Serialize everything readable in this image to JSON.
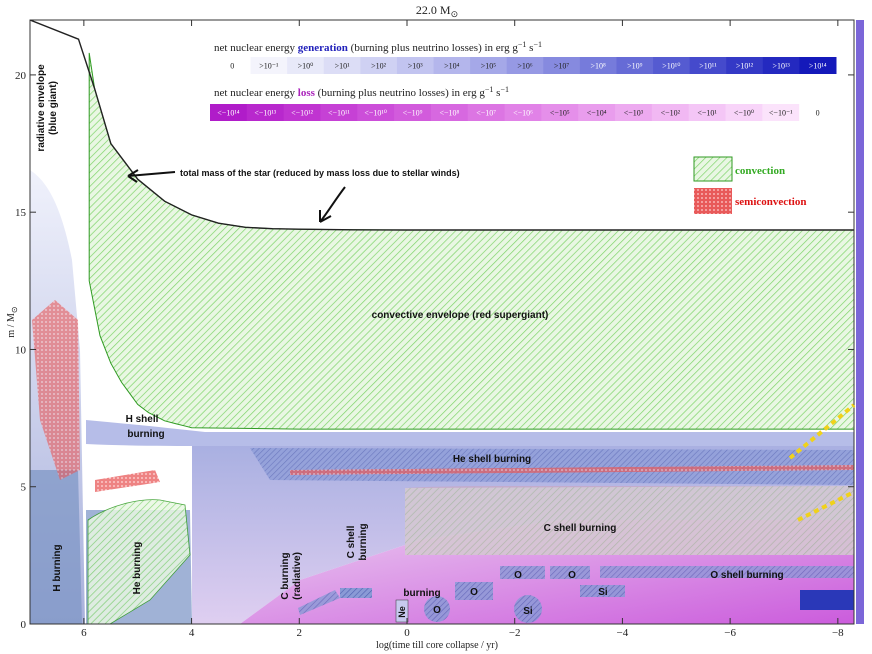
{
  "chart_data": {
    "type": "area",
    "title": "22.0 M",
    "title_symbol": "⊙",
    "xlabel": "log(time till core collapse / yr)",
    "ylabel": "m / M",
    "ylabel_symbol": "⊙",
    "xlim": [
      7,
      -8.3
    ],
    "ylim": [
      0,
      22
    ],
    "x_ticks": [
      {
        "value": 6,
        "label": "6"
      },
      {
        "value": 4,
        "label": "4"
      },
      {
        "value": 2,
        "label": "2"
      },
      {
        "value": 0,
        "label": "0"
      },
      {
        "value": -2,
        "label": "−2"
      },
      {
        "value": -4,
        "label": "−4"
      },
      {
        "value": -6,
        "label": "−6"
      },
      {
        "value": -8,
        "label": "−8"
      }
    ],
    "y_ticks": [
      {
        "value": 0,
        "label": "0"
      },
      {
        "value": 5,
        "label": "5"
      },
      {
        "value": 10,
        "label": "10"
      },
      {
        "value": 15,
        "label": "15"
      },
      {
        "value": 20,
        "label": "20"
      }
    ],
    "total_mass_series": {
      "name": "total mass of the star",
      "x": [
        7,
        6.1,
        5.8,
        5.5,
        5.0,
        4.5,
        4.0,
        3.5,
        3.0,
        2.5,
        2.0,
        1.0,
        0,
        -2,
        -4,
        -6,
        -8.3
      ],
      "y": [
        22.0,
        21.3,
        19.5,
        17.5,
        16.2,
        15.4,
        14.9,
        14.6,
        14.45,
        14.4,
        14.38,
        14.36,
        14.35,
        14.35,
        14.35,
        14.35,
        14.35
      ]
    },
    "convective_envelope_base": {
      "x": [
        5.9,
        5.7,
        5.5,
        5.3,
        5.0,
        4.8,
        4.5,
        4.3,
        4.1,
        4.0,
        2.0,
        0,
        -4,
        -8.3
      ],
      "y": [
        12.5,
        10.5,
        9.5,
        8.8,
        8.0,
        7.7,
        7.4,
        7.3,
        7.2,
        7.15,
        7.1,
        7.1,
        7.1,
        7.1
      ]
    },
    "generation_legend": {
      "title_prefix": "net nuclear energy",
      "title_keyword": "generation",
      "title_suffix": "(burning plus neutrino losses) in erg g",
      "title_units_tail": "s",
      "labels": [
        "0",
        ">10⁻¹",
        ">10⁰",
        ">10¹",
        ">10²",
        ">10³",
        ">10⁴",
        ">10⁵",
        ">10⁶",
        ">10⁷",
        ">10⁸",
        ">10⁹",
        ">10¹⁰",
        ">10¹¹",
        ">10¹²",
        ">10¹³",
        ">10¹⁴"
      ],
      "colors": [
        "#ffffff",
        "#f4f4fc",
        "#e8e9f9",
        "#dcddf6",
        "#cfd1f3",
        "#c2c4f0",
        "#b4b6ec",
        "#a5a8e8",
        "#9699e4",
        "#868adf",
        "#767bdb",
        "#666bd6",
        "#555bd1",
        "#454acc",
        "#3439c6",
        "#2429c0",
        "#1419ba"
      ]
    },
    "loss_legend": {
      "title_prefix": "net nuclear energy",
      "title_keyword": "loss",
      "title_suffix": "(burning plus neutrino losses) in erg g",
      "title_units_tail": "s",
      "labels": [
        "<−10¹⁴",
        "<−10¹³",
        "<−10¹²",
        "<−10¹¹",
        "<−10¹⁰",
        "<−10⁹",
        "<−10⁸",
        "<−10⁷",
        "<−10⁶",
        "<−10⁵",
        "<−10⁴",
        "<−10³",
        "<−10²",
        "<−10¹",
        "<−10⁰",
        "<−10⁻¹",
        "0"
      ],
      "colors": [
        "#b01cc9",
        "#b828cd",
        "#c034d1",
        "#c641d5",
        "#cc4ed9",
        "#d25bdc",
        "#d768e0",
        "#dc75e3",
        "#e182e7",
        "#e58fea",
        "#e99ded",
        "#edaaf0",
        "#f1b8f3",
        "#f4c6f6",
        "#f8d4f9",
        "#fbe3fb",
        "#ffffff"
      ]
    },
    "key": [
      {
        "label": "convection",
        "color": "#33aa22"
      },
      {
        "label": "semiconvection",
        "color": "#dd1111"
      }
    ],
    "annotations": {
      "total_mass": "total mass of the star (reduced by mass loss due to stellar winds)",
      "radiative_envelope_1": "radiative envelope",
      "radiative_envelope_2": "(blue giant)",
      "convective_envelope": "convective envelope (red supergiant)",
      "h_shell_1": "H shell",
      "h_shell_2": "burning",
      "he_shell": "He shell burning",
      "c_shell": "C shell burning",
      "h_burning": "H burning",
      "he_burning": "He burning",
      "c_radiative_1": "C burning",
      "c_radiative_2": "(radiative)",
      "c_shell_small_1": "C shell",
      "c_shell_small_2": "burning",
      "burning": "burning",
      "ne": "Ne",
      "o_core": "O",
      "o_core2": "O",
      "o_a": "O",
      "o_b": "O",
      "o_shell": "O shell burning",
      "si_shell": "Si",
      "si_core": "Si"
    }
  }
}
